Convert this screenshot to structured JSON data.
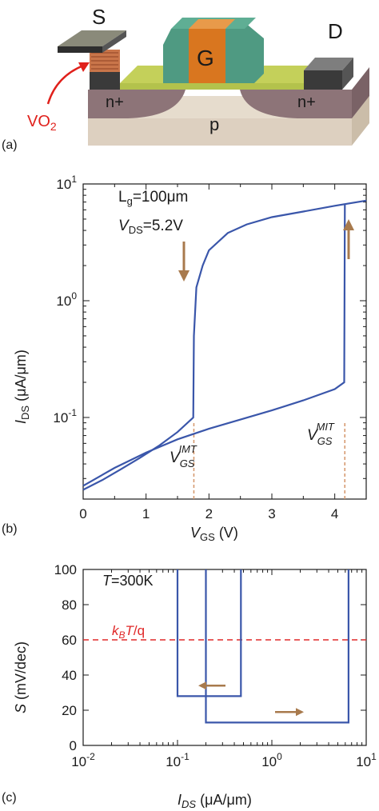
{
  "device_diagram": {
    "panel_label": "(a)",
    "labels": {
      "source": "S",
      "gate": "G",
      "drain": "D",
      "vo2_base": "VO",
      "vo2_sub": "2",
      "n_left": "n+",
      "n_right": "n+",
      "substrate": "p"
    },
    "colors": {
      "gate": "#d9761f",
      "spacer": "#4f9a82",
      "oxide": "#b3c24c",
      "nplus": "#8d7478",
      "substrate": "#ddd0c0",
      "contact": "#3a3a3a",
      "vo2": "#c9754a",
      "arrow": "#e0201b"
    }
  },
  "chart_data": [
    {
      "type": "line",
      "panel_label": "(b)",
      "xlabel": "V_GS (V)",
      "ylabel": "I_DS (μA/μm)",
      "xlim": [
        0,
        4.5
      ],
      "ylim": [
        0.02,
        10
      ],
      "yscale": "log",
      "xticks": [
        "0",
        "1",
        "2",
        "3",
        "4"
      ],
      "yticks": [
        {
          "base": "10",
          "exp": "-1",
          "value": 0.1
        },
        {
          "base": "10",
          "exp": "0",
          "value": 1
        },
        {
          "base": "10",
          "exp": "1",
          "value": 10
        }
      ],
      "annotations": {
        "lg": "L",
        "lg_sub": "g",
        "lg_value": "=100μm",
        "vds": "V",
        "vds_sub": "DS",
        "vds_value": "=5.2V",
        "imt": "IMT",
        "mit": "MIT",
        "vgs": "V",
        "gs": "GS"
      },
      "series": [
        {
          "x": [
            0,
            0.3,
            0.6,
            0.9,
            1.2,
            1.5,
            1.75,
            1.76,
            1.8,
            1.9,
            2.0,
            2.3,
            2.6,
            3.0,
            3.5,
            4.0,
            4.5
          ],
          "y": [
            0.024,
            0.029,
            0.036,
            0.045,
            0.057,
            0.075,
            0.1,
            0.5,
            1.3,
            2.0,
            2.7,
            3.8,
            4.5,
            5.2,
            5.8,
            6.5,
            7.2
          ]
        },
        {
          "x": [
            0,
            0.5,
            1.0,
            1.5,
            2.0,
            2.5,
            3.0,
            3.5,
            4.0,
            4.15,
            4.16
          ],
          "y": [
            0.026,
            0.037,
            0.05,
            0.065,
            0.08,
            0.096,
            0.115,
            0.14,
            0.175,
            0.2,
            6.8
          ]
        }
      ],
      "transitions": [
        1.76,
        4.16
      ],
      "colors": {
        "curve": "#3a56aa",
        "arrow": "#a87a4d",
        "guide": "#d4956a"
      }
    },
    {
      "type": "line",
      "panel_label": "(c)",
      "xlabel": "I_DS (μA/μm)",
      "ylabel": "S (mV/dec)",
      "xscale": "log",
      "xlim": [
        0.01,
        10
      ],
      "ylim": [
        0,
        100
      ],
      "xticks": [
        {
          "base": "10",
          "exp": "-2",
          "value": 0.01
        },
        {
          "base": "10",
          "exp": "-1",
          "value": 0.1
        },
        {
          "base": "10",
          "exp": "0",
          "value": 1
        },
        {
          "base": "10",
          "exp": "1",
          "value": 10
        }
      ],
      "yticks": [
        "0",
        "20",
        "40",
        "60",
        "80",
        "100"
      ],
      "annotations": {
        "temp": "T",
        "temp_value": "=300K",
        "kbt": "k",
        "kbt_sub": "B",
        "kbt_t": "T",
        "kbt_q": "/q"
      },
      "threshold": 60,
      "series": [
        {
          "x": [
            0.1,
            0.1,
            0.47,
            0.47
          ],
          "y": [
            100,
            28,
            28,
            100
          ]
        },
        {
          "x": [
            0.2,
            0.2,
            6.5,
            6.5
          ],
          "y": [
            100,
            13,
            13,
            100
          ]
        }
      ],
      "colors": {
        "curve": "#3a56aa",
        "arrow": "#a87a4d",
        "threshold": "#e02828"
      }
    }
  ]
}
